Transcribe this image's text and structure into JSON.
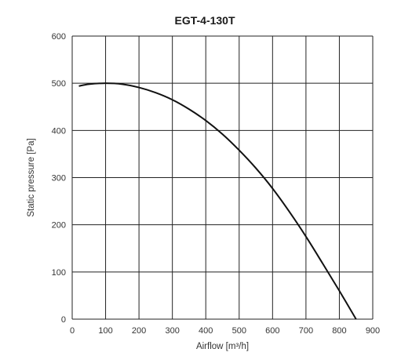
{
  "chart_data": {
    "type": "line",
    "title": "EGT-4-130T",
    "xlabel": "Airflow [m³/h]",
    "ylabel": "Static pressure [Pa]",
    "xlim": [
      0,
      900
    ],
    "ylim": [
      0,
      600
    ],
    "xticks": [
      "0",
      "100",
      "200",
      "300",
      "400",
      "500",
      "600",
      "700",
      "800",
      "900"
    ],
    "yticks": [
      "0",
      "100",
      "200",
      "300",
      "400",
      "500",
      "600"
    ],
    "grid": true,
    "series": [
      {
        "color": "#111111",
        "x": [
          20,
          50,
          100,
          150,
          200,
          250,
          300,
          350,
          400,
          450,
          500,
          550,
          600,
          650,
          700,
          750,
          800,
          850
        ],
        "y": [
          494,
          498,
          500,
          498,
          491,
          480,
          465,
          445,
          421,
          392,
          358,
          320,
          277,
          228,
          175,
          118,
          60,
          0
        ]
      }
    ]
  }
}
